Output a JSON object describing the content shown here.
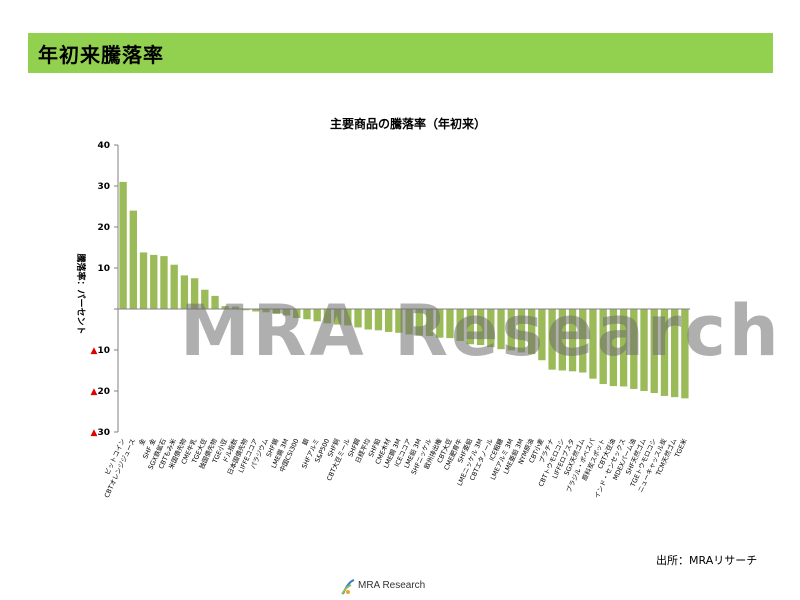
{
  "header": {
    "title": "年初来騰落率"
  },
  "source": "出所：MRAリサーチ",
  "watermark": "MRA Research",
  "logo": {
    "text": "MRA Research"
  },
  "colors": {
    "bar": "#9BBB59",
    "header": "#92D050",
    "negative_tick": "#E00000"
  },
  "chart_data": {
    "type": "bar",
    "title": "主要商品の騰落率（年初来）",
    "ylabel": "騰落率：パーセント",
    "ylim": [
      -30,
      40
    ],
    "yticks": [
      {
        "value": 40,
        "label": "40"
      },
      {
        "value": 30,
        "label": "30"
      },
      {
        "value": 20,
        "label": "20"
      },
      {
        "value": 10,
        "label": "10"
      },
      {
        "value": 0,
        "label": ""
      },
      {
        "value": -10,
        "label": "▲10"
      },
      {
        "value": -20,
        "label": "▲20"
      },
      {
        "value": -30,
        "label": "▲30"
      }
    ],
    "grid": false,
    "categories": [
      "ビットコイン",
      "CBTオレンジジュース",
      "金",
      "SHF 金",
      "SGX鉄鉱石",
      "CBTもみ米",
      "米国債先物",
      "CME牛乳",
      "TGE大豆",
      "独国債先物",
      "TGE小豆",
      "ドル指数",
      "日本国債先物",
      "LIFFEココア",
      "パラジウム",
      "SHF錫",
      "LME錫 3M",
      "中国CSI300",
      "銀",
      "SHFアルミ",
      "S&P500",
      "SHF銅",
      "CBT大豆ミール",
      "SHF鋼",
      "日経平均",
      "SHF鉛",
      "CME木材",
      "LME鋼 3M",
      "ICEココア",
      "LME鉛 3M",
      "SHFニッケル",
      "欧州排出権",
      "CBT大豆",
      "CME肥育牛",
      "SHF亜鉛",
      "LMEニッケル 3M",
      "CBTエタノール",
      "ICE粗糖",
      "LMEアルミ 3M",
      "LME亜鉛 3M",
      "NYM原油",
      "CBT小麦",
      "プラチナ",
      "CBTトウモロコシ",
      "LIFFEロブスタ",
      "SGX天然ゴム",
      "ブラジル・ボベスパ",
      "原料炭スポット",
      "CBT大豆油",
      "インド・センセックス",
      "MDEXパーム油",
      "SHF天然ゴム",
      "TGEトウモロコシ",
      "ニューキャッスル炭",
      "TCM天然ゴム",
      "TGE米"
    ],
    "values": [
      31,
      24,
      13.8,
      13.2,
      12.9,
      10.8,
      8.2,
      7.5,
      4.7,
      3.2,
      0.7,
      0.6,
      -0.3,
      -0.6,
      -0.8,
      -1.2,
      -1.6,
      -2.2,
      -2.5,
      -3.0,
      -3.5,
      -3.8,
      -4.0,
      -4.5,
      -5.0,
      -5.2,
      -5.6,
      -5.8,
      -6.2,
      -6.5,
      -6.6,
      -7.0,
      -7.1,
      -7.8,
      -8.6,
      -8.8,
      -9.3,
      -9.8,
      -10.1,
      -10.6,
      -11.0,
      -12.5,
      -14.8,
      -15.0,
      -15.2,
      -15.5,
      -17.0,
      -18.3,
      -18.8,
      -18.9,
      -19.5,
      -20.0,
      -20.5,
      -21.2,
      -21.5,
      -21.8
    ]
  }
}
